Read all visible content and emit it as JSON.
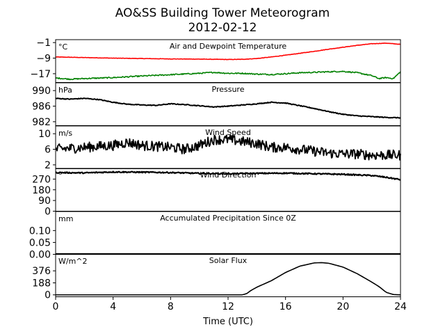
{
  "chart_data": {
    "type": "line",
    "title_line1": "AO&SS Building Tower Meteorogram",
    "title_line2": "2012-02-12",
    "xlabel": "Time (UTC)",
    "xlim": [
      0,
      24
    ],
    "xticks": [
      "0",
      "4",
      "8",
      "12",
      "16",
      "20",
      "24"
    ],
    "panels": [
      {
        "title": "Air and Dewpoint Temperature",
        "unit": "°C",
        "ylim": [
          -21.5,
          0.5
        ],
        "yticks": [
          {
            "v": -1,
            "label": "−1"
          },
          {
            "v": -9,
            "label": "−9"
          },
          {
            "v": -17,
            "label": "−17"
          }
        ],
        "series": [
          {
            "color": "#ff0000",
            "x": [
              0,
              2,
              4,
              6,
              8,
              10,
              12,
              13,
              14,
              15,
              16,
              17,
              18,
              19,
              20,
              21,
              22,
              23,
              24
            ],
            "y": [
              -8.4,
              -8.7,
              -9.0,
              -9.2,
              -9.4,
              -9.5,
              -9.7,
              -9.6,
              -9.2,
              -8.4,
              -7.5,
              -6.5,
              -5.5,
              -4.4,
              -3.4,
              -2.4,
              -1.6,
              -1.3,
              -1.9
            ],
            "noise": 0.1,
            "lw": 1.6
          },
          {
            "color": "#008000",
            "x": [
              0,
              1,
              2,
              4,
              6,
              8,
              10,
              11,
              12,
              13,
              14,
              15,
              16,
              17,
              18,
              19,
              20,
              21,
              22,
              22.5,
              23,
              23.5,
              24
            ],
            "y": [
              -19.2,
              -19.8,
              -19.5,
              -19.0,
              -18.2,
              -17.5,
              -16.8,
              -16.3,
              -16.8,
              -16.8,
              -17.2,
              -17.4,
              -17.0,
              -16.5,
              -16.3,
              -16.0,
              -15.8,
              -16.5,
              -18.0,
              -19.5,
              -19.0,
              -19.5,
              -16.0
            ],
            "noise": 0.3,
            "lw": 1.6
          }
        ]
      },
      {
        "title": "Pressure",
        "unit": "hPa",
        "ylim": [
          981,
          992
        ],
        "yticks": [
          {
            "v": 990,
            "label": "990"
          },
          {
            "v": 986,
            "label": "986"
          },
          {
            "v": 982,
            "label": "982"
          }
        ],
        "series": [
          {
            "color": "#000000",
            "x": [
              0,
              1,
              2,
              3,
              4,
              5,
              6,
              7,
              8,
              9,
              10,
              11,
              12,
              13,
              14,
              15,
              16,
              17,
              18,
              19,
              20,
              21,
              22,
              23,
              24
            ],
            "y": [
              988.0,
              987.8,
              988.0,
              987.7,
              987.0,
              986.5,
              986.3,
              986.2,
              986.6,
              986.4,
              986.1,
              985.8,
              986.0,
              986.3,
              986.6,
              987.0,
              986.8,
              986.1,
              985.4,
              984.6,
              983.9,
              983.5,
              983.3,
              983.1,
              983.0
            ],
            "noise": 0.1,
            "lw": 2
          }
        ]
      },
      {
        "title": "Wind Speed",
        "unit": "m/s",
        "ylim": [
          1,
          12
        ],
        "yticks": [
          {
            "v": 10,
            "label": "10"
          },
          {
            "v": 6,
            "label": "6"
          },
          {
            "v": 2,
            "label": "2"
          }
        ],
        "series": [
          {
            "color": "#000000",
            "x": [
              0,
              2,
              4,
              5,
              6,
              8,
              9,
              10,
              11,
              12,
              13,
              14,
              15,
              16,
              17,
              18,
              19,
              20,
              21,
              22,
              23,
              24
            ],
            "y": [
              6.0,
              6.5,
              7.0,
              7.8,
              7.0,
              6.5,
              6.0,
              7.0,
              8.5,
              8.5,
              8.0,
              7.5,
              6.5,
              6.5,
              6.0,
              5.5,
              5.0,
              4.8,
              4.8,
              4.5,
              4.5,
              4.5
            ],
            "noise": 1.3,
            "lw": 1.8
          }
        ]
      },
      {
        "title": "Wind Direction",
        "unit": "°",
        "ylim": [
          0,
          360
        ],
        "yticks": [
          {
            "v": 270,
            "label": "270"
          },
          {
            "v": 180,
            "label": "180"
          },
          {
            "v": 90,
            "label": "90"
          },
          {
            "v": 0,
            "label": "0"
          }
        ],
        "series": [
          {
            "color": "#000000",
            "x": [
              0,
              2,
              4,
              6,
              8,
              10,
              12,
              14,
              16,
              18,
              20,
              22,
              23,
              24
            ],
            "y": [
              325,
              322,
              330,
              328,
              325,
              318,
              315,
              318,
              320,
              315,
              310,
              300,
              285,
              265
            ],
            "noise": 5,
            "lw": 2.2
          }
        ]
      },
      {
        "title": "Accumulated Precipitation Since 0Z",
        "unit": "mm",
        "ylim": [
          0,
          0.18
        ],
        "yticks": [
          {
            "v": 0.1,
            "label": "0.10"
          },
          {
            "v": 0.05,
            "label": "0.05"
          },
          {
            "v": 0.0,
            "label": "0.00"
          }
        ],
        "series": [
          {
            "color": "#000000",
            "x": [
              0,
              24
            ],
            "y": [
              0,
              0
            ],
            "noise": 0,
            "lw": 2.2
          }
        ]
      },
      {
        "title": "Solar Flux",
        "unit": "W/m^2",
        "ylim": [
          -30,
          640
        ],
        "yticks": [
          {
            "v": 376,
            "label": "376"
          },
          {
            "v": 188,
            "label": "188"
          },
          {
            "v": 0,
            "label": "0"
          }
        ],
        "series": [
          {
            "color": "#000000",
            "x": [
              0,
              13,
              13.3,
              13.6,
              14,
              15,
              16,
              17,
              18,
              18.5,
              19,
              20,
              21,
              22,
              22.5,
              23,
              23.5,
              24
            ],
            "y": [
              0,
              0,
              20,
              70,
              120,
              220,
              350,
              450,
              500,
              505,
              495,
              435,
              330,
              200,
              130,
              40,
              5,
              0
            ],
            "noise": 0,
            "lw": 1.6
          }
        ]
      }
    ]
  }
}
